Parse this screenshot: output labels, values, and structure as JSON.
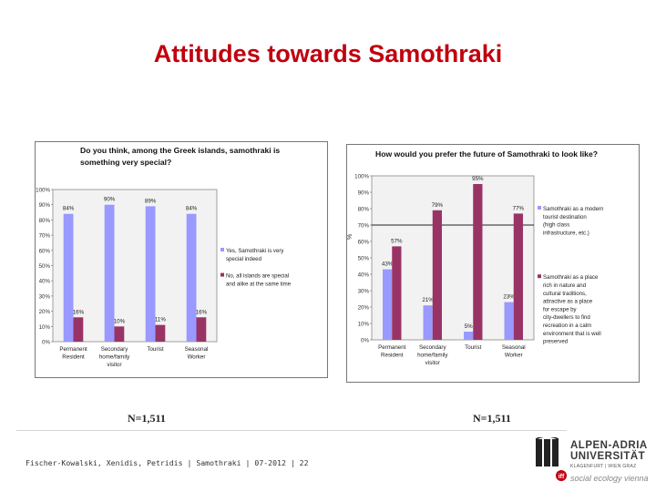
{
  "slide": {
    "title": "Attitudes towards Samothraki",
    "footer": "Fischer-Kowalski, Xenidis, Petridis | Samothraki | 07-2012 | 22",
    "notes": [
      "N=1,511",
      "N=1,511"
    ]
  },
  "logo": {
    "name_line1": "ALPEN-ADRIA",
    "name_line2": "UNIVERSITÄT",
    "subtitle": "KLAGENFURT | WIEN GRAZ",
    "dept": "social ecology vienna",
    "red": "#c0000f"
  },
  "colors": {
    "series_a": "#9999ff",
    "series_b": "#993366",
    "title": "#c0000f"
  },
  "chart_data": [
    {
      "type": "bar",
      "title": "Do you think, among the Greek islands, samothraki is something very special?",
      "categories": [
        "Permanent Resident",
        "Secondary home/family visitor",
        "Tourist",
        "Seasonal Worker"
      ],
      "series": [
        {
          "name": "Yes, Samothraki is very special indeed",
          "values": [
            84,
            90,
            89,
            84
          ]
        },
        {
          "name": "No, all islands are special and alike at the same time",
          "values": [
            16,
            10,
            11,
            16
          ]
        }
      ],
      "data_labels": [
        [
          "84%",
          "90%",
          "89%",
          "84%"
        ],
        [
          "16%",
          "10%",
          "11%",
          "16%"
        ]
      ],
      "ytick_labels": [
        "0%",
        "10%",
        "20%",
        "30%",
        "40%",
        "50%",
        "60%",
        "70%",
        "80%",
        "90%",
        "100%"
      ],
      "ylabel": "",
      "ylim": [
        0,
        100
      ],
      "grid": false,
      "legend": "right"
    },
    {
      "type": "bar",
      "title": "How would you prefer the future of Samothraki to look like?",
      "categories": [
        "Permanent Resident",
        "Secondary home/family visitor",
        "Tourist",
        "Seasonal Worker"
      ],
      "series": [
        {
          "name": "Samothraki as a modern tourist destination (high class infrastructure, etc.)",
          "values": [
            43,
            21,
            5,
            23
          ]
        },
        {
          "name": "Samothraki as a place rich in nature and cultural traditions, attractive as a place for escape by city-dwellers to find recreation in a calm environment that is well preserved",
          "values": [
            57,
            79,
            95,
            77
          ]
        }
      ],
      "data_labels": [
        [
          "43%",
          "21%",
          "5%",
          "23%"
        ],
        [
          "57%",
          "79%",
          "95%",
          "77%"
        ]
      ],
      "ytick_labels": [
        "0%",
        "10%",
        "20%",
        "30%",
        "40%",
        "50%",
        "60%",
        "70%",
        "80%",
        "90%",
        "100%"
      ],
      "ylabel": "%",
      "ylim": [
        0,
        100
      ],
      "reference_line": 70,
      "grid": false,
      "legend": "right"
    }
  ]
}
